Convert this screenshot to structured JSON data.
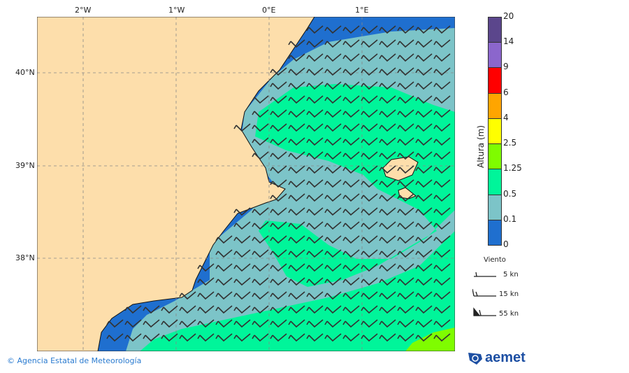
{
  "axes": {
    "lon_ticks": [
      "2°W",
      "1°W",
      "0°E",
      "1°E"
    ],
    "lat_ticks": [
      "40°N",
      "39°N",
      "38°N"
    ]
  },
  "colorbar": {
    "label": "Altura (m)",
    "levels": [
      "0",
      "0.1",
      "0.5",
      "1.25",
      "2.5",
      "4",
      "6",
      "9",
      "14",
      "20"
    ],
    "colors": [
      "#1f6fcf",
      "#7cc4c8",
      "#00f59a",
      "#7ffc00",
      "#ffff00",
      "#ffa500",
      "#ff0000",
      "#8b66cc",
      "#5b468c"
    ]
  },
  "wind_legend": {
    "title": "Viento",
    "items": [
      "5 kn",
      "15 kn",
      "55 kn"
    ]
  },
  "footer": {
    "credit": "© Agencia Estatal de Meteorología",
    "logo": "aemet"
  },
  "map_colors": {
    "land": "#fddeab",
    "low": "#1f6fcf",
    "mid": "#7cc4c8",
    "high": "#00f59a",
    "higher": "#7ffc00"
  }
}
